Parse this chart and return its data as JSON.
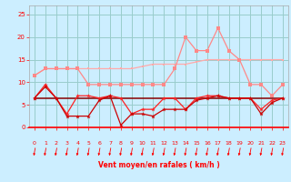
{
  "x": [
    0,
    1,
    2,
    3,
    4,
    5,
    6,
    7,
    8,
    9,
    10,
    11,
    12,
    13,
    14,
    15,
    16,
    17,
    18,
    19,
    20,
    21,
    22,
    23
  ],
  "line1": [
    11.5,
    13,
    13,
    13,
    13,
    13,
    13,
    13,
    13,
    13,
    13.5,
    14,
    14,
    14,
    14,
    14.5,
    15,
    15,
    15,
    15,
    15,
    15,
    15,
    15
  ],
  "line2": [
    11.5,
    13,
    13,
    13,
    13,
    9.5,
    9.5,
    9.5,
    9.5,
    9.5,
    9.5,
    9.5,
    9.5,
    13,
    20,
    17,
    17,
    22,
    17,
    15,
    9.5,
    9.5,
    7,
    9.5
  ],
  "line3": [
    6.5,
    6.5,
    6.5,
    6.5,
    6.5,
    6.5,
    6.5,
    6.5,
    6.5,
    6.5,
    6.5,
    6.5,
    6.5,
    6.5,
    6.5,
    6.5,
    6.5,
    6.5,
    6.5,
    6.5,
    6.5,
    6.5,
    6.5,
    6.5
  ],
  "line4": [
    6.5,
    9.5,
    6.5,
    3,
    7,
    7,
    6.5,
    7,
    6.5,
    3,
    4,
    4,
    6.5,
    6.5,
    4,
    6.5,
    7,
    7,
    6.5,
    6.5,
    6.5,
    4,
    6,
    6.5
  ],
  "line5": [
    6.5,
    9,
    6.5,
    2.5,
    2.5,
    2.5,
    6,
    7,
    0.5,
    3,
    3,
    2.5,
    4,
    4,
    4,
    6,
    6.5,
    7,
    6.5,
    6.5,
    6.5,
    3,
    5.5,
    6.5
  ],
  "color1": "#ffaaaa",
  "color2": "#ff8888",
  "color3": "#880000",
  "color4": "#ff2222",
  "color5": "#cc0000",
  "bg_color": "#cceeff",
  "grid_color": "#99cccc",
  "xlabel": "Vent moyen/en rafales ( km/h )",
  "ylim": [
    0,
    27
  ],
  "xlim": [
    -0.5,
    23.5
  ],
  "yticks": [
    0,
    5,
    10,
    15,
    20,
    25
  ],
  "xticks": [
    0,
    1,
    2,
    3,
    4,
    5,
    6,
    7,
    8,
    9,
    10,
    11,
    12,
    13,
    14,
    15,
    16,
    17,
    18,
    19,
    20,
    21,
    22,
    23
  ]
}
